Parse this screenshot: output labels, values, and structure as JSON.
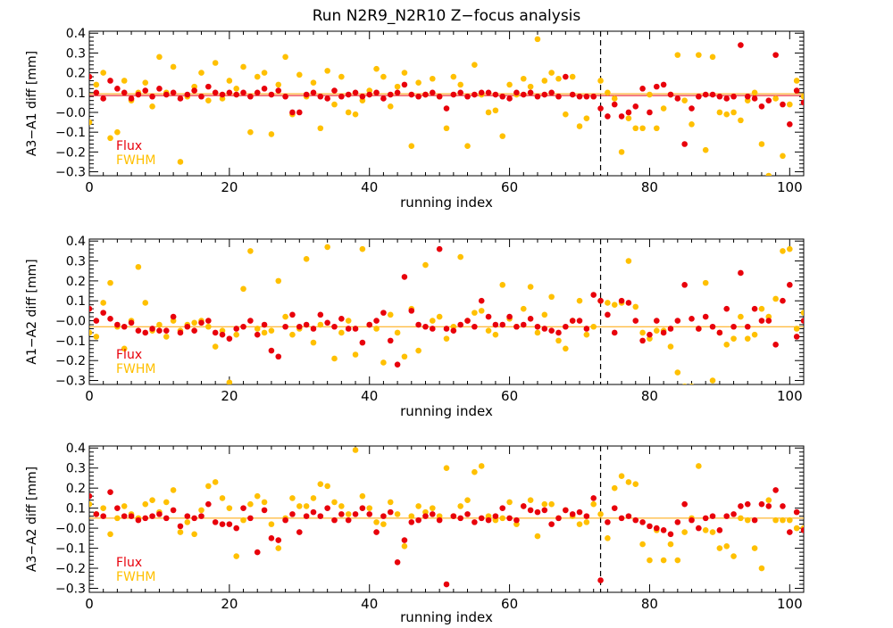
{
  "title": "Run N2R9_N2R10 Z−focus analysis",
  "colors": {
    "flux": "#e8000b",
    "fwhm": "#ffc000",
    "line": "#ffa500",
    "axis": "#000000"
  },
  "chart_data": [
    {
      "type": "scatter",
      "xlabel": "running index",
      "ylabel": "A3−A1 diff [mm]",
      "xlim": [
        0,
        102
      ],
      "ylim": [
        -0.32,
        0.41
      ],
      "x_ticks": [
        0,
        20,
        40,
        60,
        80,
        100
      ],
      "y_ticks": [
        -0.3,
        -0.2,
        -0.1,
        0.0,
        0.1,
        0.2,
        0.3,
        0.4
      ],
      "y_tick_labels": [
        "−0.3",
        "−0.2",
        "−0.1",
        "−0.0",
        "0.1",
        "0.2",
        "0.3",
        "0.4"
      ],
      "legend": [
        "Flux",
        "FWHM"
      ],
      "legend_position": "bottom-left",
      "vline_x": 73,
      "hline": {
        "series": "Flux",
        "y": 0.085
      },
      "series": [
        {
          "name": "Flux",
          "values": [
            0.18,
            0.1,
            0.07,
            0.16,
            0.12,
            0.1,
            0.07,
            0.09,
            0.11,
            0.08,
            0.12,
            0.09,
            0.1,
            0.07,
            0.09,
            0.11,
            0.08,
            0.13,
            0.1,
            0.09,
            0.1,
            0.09,
            0.1,
            0.08,
            0.1,
            0.12,
            0.09,
            0.11,
            0.08,
            0.0,
            0.0,
            0.09,
            0.1,
            0.08,
            0.07,
            0.11,
            0.08,
            0.09,
            0.1,
            0.08,
            0.09,
            0.1,
            0.07,
            0.09,
            0.1,
            0.14,
            0.09,
            0.08,
            0.09,
            0.1,
            0.08,
            0.02,
            0.09,
            0.1,
            0.08,
            0.09,
            0.1,
            0.1,
            0.09,
            0.08,
            0.07,
            0.1,
            0.09,
            0.1,
            0.08,
            0.09,
            0.1,
            0.08,
            0.18,
            0.09,
            0.08,
            0.08,
            0.08,
            0.02,
            -0.02,
            0.04,
            -0.02,
            0.0,
            0.03,
            0.12,
            0.0,
            0.13,
            0.14,
            0.09,
            0.07,
            -0.16,
            0.02,
            0.08,
            0.09,
            0.09,
            0.08,
            0.07,
            0.08,
            0.34,
            0.08,
            0.07,
            0.03,
            0.06,
            0.29,
            0.04,
            -0.06,
            0.11,
            0.05
          ]
        },
        {
          "name": "FWHM",
          "values": [
            -0.05,
            0.14,
            0.2,
            -0.13,
            -0.1,
            0.16,
            0.06,
            0.1,
            0.15,
            0.03,
            0.28,
            0.1,
            0.23,
            -0.25,
            0.08,
            0.13,
            0.2,
            0.06,
            0.25,
            0.07,
            0.16,
            0.12,
            0.23,
            -0.1,
            0.18,
            0.2,
            -0.11,
            0.14,
            0.28,
            -0.01,
            0.19,
            0.08,
            0.15,
            -0.08,
            0.21,
            0.04,
            0.18,
            0.0,
            -0.01,
            0.06,
            0.11,
            0.22,
            0.18,
            0.03,
            0.13,
            0.2,
            -0.17,
            0.15,
            0.09,
            0.17,
            0.08,
            -0.08,
            0.18,
            0.14,
            -0.17,
            0.24,
            0.09,
            0.0,
            0.01,
            -0.12,
            0.14,
            0.09,
            0.17,
            0.13,
            0.37,
            0.16,
            0.2,
            0.17,
            -0.01,
            0.18,
            -0.07,
            -0.03,
            0.08,
            0.16,
            0.1,
            0.07,
            -0.2,
            -0.03,
            -0.08,
            -0.08,
            0.09,
            -0.08,
            0.02,
            0.09,
            0.29,
            0.06,
            -0.06,
            0.29,
            -0.19,
            0.28,
            0.0,
            -0.01,
            0.0,
            -0.04,
            0.06,
            0.1,
            -0.16,
            -0.32,
            0.07,
            -0.22,
            0.04,
            0.16,
            0.08
          ]
        }
      ]
    },
    {
      "type": "scatter",
      "xlabel": "running index",
      "ylabel": "A1−A2 diff [mm]",
      "xlim": [
        0,
        102
      ],
      "ylim": [
        -0.32,
        0.41
      ],
      "x_ticks": [
        0,
        20,
        40,
        60,
        80,
        100
      ],
      "y_ticks": [
        -0.3,
        -0.2,
        -0.1,
        0.0,
        0.1,
        0.2,
        0.3,
        0.4
      ],
      "y_tick_labels": [
        "−0.3",
        "−0.2",
        "−0.1",
        "−0.0",
        "0.1",
        "0.2",
        "0.3",
        "0.4"
      ],
      "legend": [
        "Flux",
        "FWHM"
      ],
      "legend_position": "bottom-left",
      "vline_x": 73,
      "hline": {
        "series": "FWHM",
        "y": -0.03
      },
      "series": [
        {
          "name": "Flux",
          "values": [
            0.06,
            0.0,
            0.04,
            0.01,
            -0.02,
            -0.03,
            -0.01,
            -0.05,
            -0.06,
            -0.04,
            -0.05,
            -0.05,
            0.02,
            -0.06,
            -0.03,
            -0.05,
            -0.01,
            0.0,
            -0.06,
            -0.07,
            -0.09,
            -0.04,
            -0.03,
            0.0,
            -0.07,
            -0.02,
            -0.15,
            -0.18,
            -0.03,
            0.03,
            -0.03,
            -0.02,
            -0.04,
            0.03,
            -0.01,
            -0.03,
            0.01,
            -0.04,
            -0.04,
            -0.11,
            -0.02,
            0.0,
            0.04,
            -0.1,
            -0.22,
            0.22,
            0.05,
            -0.02,
            -0.03,
            -0.04,
            0.36,
            -0.04,
            -0.05,
            -0.02,
            0.0,
            -0.03,
            0.1,
            0.02,
            -0.02,
            -0.02,
            0.02,
            -0.03,
            -0.02,
            0.01,
            -0.03,
            -0.04,
            -0.05,
            -0.06,
            -0.03,
            0.0,
            0.0,
            -0.04,
            0.13,
            0.1,
            0.03,
            -0.06,
            0.1,
            0.09,
            0.0,
            -0.1,
            -0.07,
            0.0,
            -0.06,
            -0.04,
            0.0,
            0.18,
            0.01,
            -0.04,
            0.02,
            -0.03,
            -0.06,
            0.06,
            -0.03,
            0.24,
            -0.03,
            0.06,
            0.0,
            0.0,
            -0.12,
            0.1,
            0.18,
            -0.08,
            0.0
          ]
        },
        {
          "name": "FWHM",
          "values": [
            -0.06,
            -0.08,
            0.09,
            0.19,
            -0.03,
            -0.14,
            0.0,
            0.27,
            0.09,
            -0.05,
            -0.02,
            -0.08,
            0.0,
            -0.05,
            -0.02,
            -0.01,
            0.0,
            -0.03,
            -0.13,
            -0.05,
            -0.31,
            -0.07,
            0.16,
            0.35,
            -0.04,
            -0.06,
            -0.05,
            0.2,
            0.02,
            -0.07,
            -0.04,
            0.31,
            -0.11,
            -0.02,
            0.37,
            -0.19,
            -0.06,
            0.0,
            -0.17,
            0.36,
            -0.02,
            -0.04,
            -0.21,
            0.03,
            -0.06,
            -0.18,
            0.06,
            -0.15,
            0.28,
            0.0,
            0.02,
            -0.09,
            -0.03,
            0.32,
            0.0,
            0.04,
            0.05,
            -0.05,
            -0.07,
            0.18,
            0.01,
            -0.03,
            0.06,
            0.17,
            -0.06,
            0.03,
            0.12,
            -0.1,
            -0.14,
            0.0,
            0.1,
            -0.07,
            -0.03,
            0.1,
            0.09,
            0.08,
            0.09,
            0.3,
            0.07,
            -0.06,
            -0.09,
            -0.05,
            -0.05,
            -0.13,
            -0.26,
            -0.33,
            -0.33,
            -0.04,
            0.19,
            -0.3,
            -0.06,
            -0.12,
            -0.09,
            0.02,
            -0.09,
            -0.07,
            0.06,
            0.02,
            0.11,
            0.35,
            0.36,
            -0.04,
            0.04
          ]
        }
      ]
    },
    {
      "type": "scatter",
      "xlabel": "running index",
      "ylabel": "A3−A2 diff [mm]",
      "xlim": [
        0,
        102
      ],
      "ylim": [
        -0.32,
        0.41
      ],
      "x_ticks": [
        0,
        20,
        40,
        60,
        80,
        100
      ],
      "y_ticks": [
        -0.3,
        -0.2,
        -0.1,
        0.0,
        0.1,
        0.2,
        0.3,
        0.4
      ],
      "y_tick_labels": [
        "−0.3",
        "−0.2",
        "−0.1",
        "−0.0",
        "0.1",
        "0.2",
        "0.3",
        "0.4"
      ],
      "legend": [
        "Flux",
        "FWHM"
      ],
      "legend_position": "bottom-left",
      "vline_x": 73,
      "hline": {
        "series": "FWHM",
        "y": 0.05
      },
      "series": [
        {
          "name": "Flux",
          "values": [
            0.16,
            0.07,
            0.06,
            0.18,
            0.1,
            0.06,
            0.06,
            0.04,
            0.05,
            0.06,
            0.07,
            0.05,
            0.09,
            0.01,
            0.06,
            0.05,
            0.06,
            0.12,
            0.03,
            0.02,
            0.02,
            0.0,
            0.1,
            0.05,
            -0.12,
            0.09,
            -0.05,
            -0.06,
            0.04,
            0.07,
            -0.02,
            0.06,
            0.08,
            0.06,
            0.1,
            0.04,
            0.07,
            0.04,
            0.07,
            0.1,
            0.07,
            -0.02,
            0.06,
            0.08,
            -0.17,
            -0.06,
            0.03,
            0.04,
            0.06,
            0.07,
            0.04,
            -0.28,
            0.06,
            0.05,
            0.07,
            0.03,
            0.05,
            0.04,
            0.06,
            0.1,
            0.05,
            0.04,
            0.11,
            0.09,
            0.08,
            0.09,
            0.02,
            0.05,
            0.09,
            0.07,
            0.08,
            0.06,
            0.15,
            -0.26,
            0.03,
            0.1,
            0.05,
            0.06,
            0.04,
            0.03,
            0.01,
            0.0,
            -0.01,
            -0.03,
            0.03,
            0.12,
            0.04,
            0.0,
            0.05,
            0.06,
            -0.01,
            0.06,
            0.07,
            0.11,
            0.12,
            0.04,
            0.12,
            0.11,
            0.19,
            0.11,
            -0.02,
            0.08,
            -0.01
          ]
        },
        {
          "name": "FWHM",
          "values": [
            0.12,
            0.07,
            0.1,
            -0.03,
            0.05,
            0.11,
            0.07,
            0.05,
            0.12,
            0.14,
            0.08,
            0.13,
            0.19,
            -0.02,
            0.03,
            -0.03,
            0.09,
            0.21,
            0.23,
            0.15,
            0.1,
            -0.14,
            0.04,
            0.12,
            0.16,
            0.13,
            0.02,
            -0.1,
            0.05,
            0.15,
            0.11,
            0.11,
            0.15,
            0.22,
            0.21,
            0.13,
            0.11,
            0.07,
            0.39,
            0.16,
            0.1,
            0.03,
            0.02,
            0.13,
            0.07,
            -0.09,
            0.06,
            0.11,
            0.08,
            0.1,
            0.06,
            0.3,
            0.06,
            0.11,
            0.14,
            0.28,
            0.31,
            0.06,
            0.04,
            0.05,
            0.13,
            0.02,
            0.11,
            0.14,
            -0.04,
            0.12,
            0.12,
            0.05,
            0.09,
            0.06,
            0.02,
            0.03,
            0.12,
            0.07,
            -0.05,
            0.2,
            0.26,
            0.23,
            0.22,
            -0.08,
            -0.16,
            -0.01,
            -0.16,
            -0.08,
            -0.16,
            -0.02,
            0.05,
            0.31,
            -0.01,
            -0.02,
            -0.1,
            -0.09,
            -0.14,
            0.05,
            0.04,
            -0.1,
            -0.2,
            0.14,
            0.04,
            0.04,
            0.04,
            0.0,
            0.0
          ]
        }
      ]
    }
  ]
}
